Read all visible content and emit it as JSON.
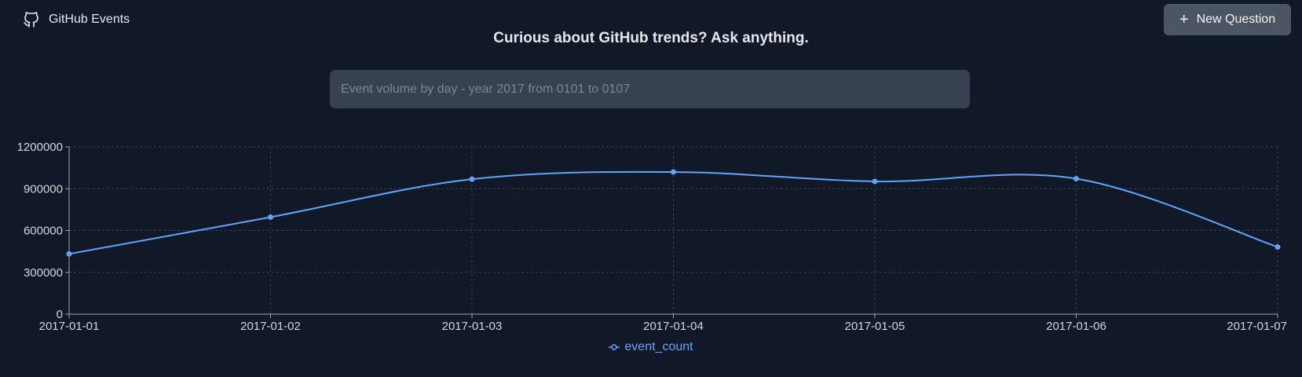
{
  "header": {
    "brand": "GitHub Events",
    "brand_icon": "github-icon"
  },
  "toolbar": {
    "new_question_label": "New Question",
    "new_question_icon": "plus-icon"
  },
  "headline": "Curious about GitHub trends? Ask anything.",
  "query": {
    "placeholder": "Event volume by day - year 2017 from 0101 to 0107"
  },
  "colors": {
    "background": "#111827",
    "series": "#60a5fa",
    "grid": "#374151",
    "axis": "#9ca3af"
  },
  "chart_data": {
    "type": "line",
    "x": [
      "2017-01-01",
      "2017-01-02",
      "2017-01-03",
      "2017-01-04",
      "2017-01-05",
      "2017-01-06",
      "2017-01-07"
    ],
    "series": [
      {
        "name": "event_count",
        "values": [
          432000,
          696000,
          968000,
          1020000,
          952000,
          972000,
          482000
        ]
      }
    ],
    "ylim": [
      0,
      1200000
    ],
    "yticks": [
      "0",
      "300000",
      "600000",
      "900000",
      "1200000"
    ],
    "grid": true,
    "legend": "bottom-center"
  }
}
